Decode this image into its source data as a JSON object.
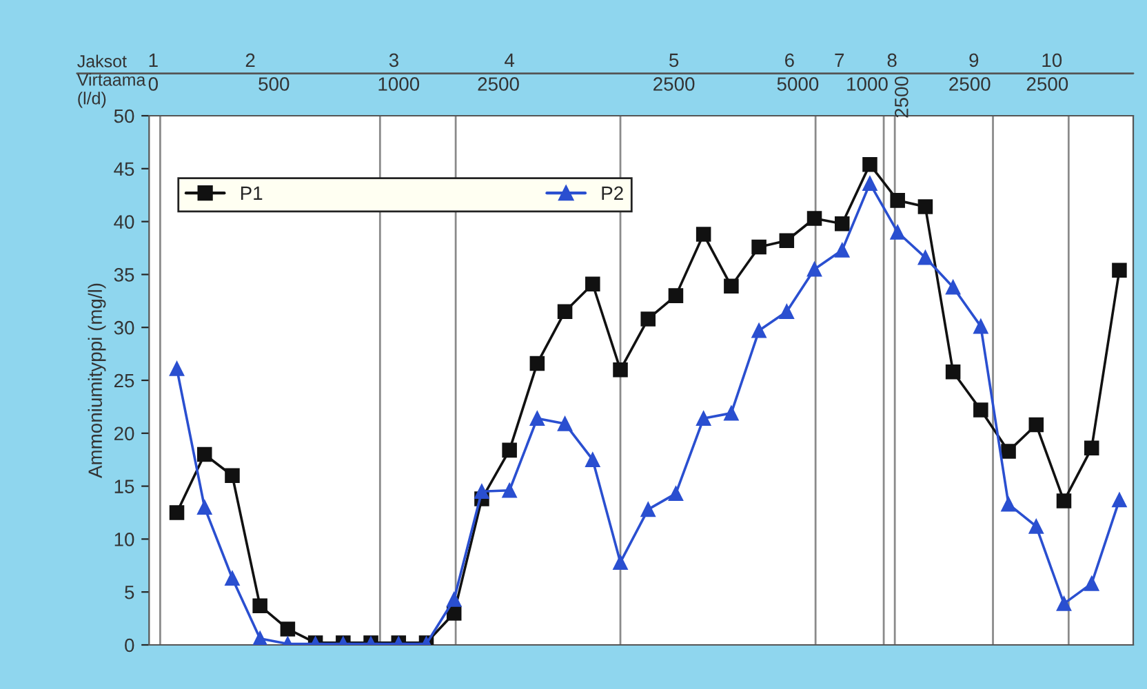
{
  "chart_data": {
    "type": "line",
    "ylabel": "Ammoniumityppi (mg/l)",
    "categories": [
      null,
      null,
      null,
      null,
      null,
      null,
      null,
      null,
      null,
      null,
      null,
      null,
      null,
      null,
      null,
      null,
      null,
      null,
      null,
      null,
      null,
      null,
      null,
      null,
      null,
      null,
      null,
      null,
      null,
      null,
      null,
      null,
      null,
      null,
      null
    ],
    "series": [
      {
        "name": "P1",
        "color": "#111111",
        "marker": "square",
        "values": [
          12.5,
          18.0,
          16.0,
          3.7,
          1.5,
          0.2,
          0.2,
          0.2,
          0.2,
          0.2,
          3.0,
          13.8,
          18.4,
          26.6,
          31.5,
          34.1,
          26.0,
          30.8,
          33.0,
          38.8,
          33.9,
          37.6,
          38.2,
          40.3,
          39.8,
          45.4,
          42.0,
          41.4,
          25.8,
          22.2,
          18.3,
          20.8,
          13.6,
          18.6,
          35.4
        ]
      },
      {
        "name": "P2",
        "color": "#2a4fd0",
        "marker": "triangle",
        "values": [
          26.1,
          13.0,
          6.3,
          0.6,
          0.1,
          0.1,
          0.1,
          0.1,
          0.1,
          0.1,
          4.3,
          14.5,
          14.6,
          21.4,
          20.9,
          17.5,
          7.8,
          12.8,
          14.3,
          21.4,
          21.9,
          29.7,
          31.5,
          35.5,
          37.3,
          43.6,
          39.0,
          36.6,
          33.8,
          30.1,
          13.3,
          11.2,
          3.9,
          5.8,
          13.7
        ]
      }
    ],
    "ylim": [
      0,
      50
    ],
    "yticks": [
      0,
      5,
      10,
      15,
      20,
      25,
      30,
      35,
      40,
      45,
      50
    ],
    "annotations": [
      "Jaksot",
      "1",
      "2",
      "3",
      "4",
      "5",
      "6",
      "7",
      "8",
      "9",
      "10",
      "Virtaama\n(l/d)",
      "0",
      "500",
      "1000",
      "2500",
      "2500",
      "5000",
      "1000",
      "2500",
      "2500",
      "2500"
    ],
    "legend": "top left",
    "grid": "x",
    "line_style": "solid"
  }
}
